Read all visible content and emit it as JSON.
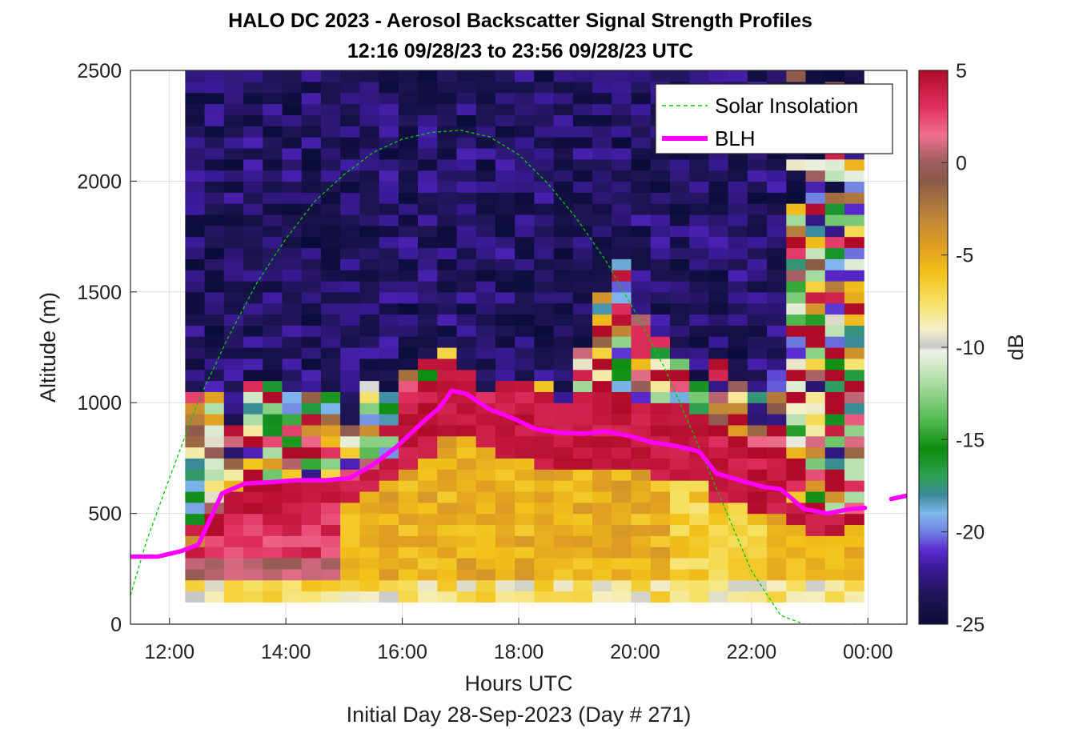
{
  "chart_data": {
    "type": "heatmap",
    "title": "HALO DC 2023 - Aerosol Backscatter Signal Strength Profiles",
    "subtitle": "12:16 09/28/23 to 23:56 09/28/23  UTC",
    "xlabel": "Hours UTC",
    "ylabel": "Altitude (m)",
    "footer": "Initial Day 28-Sep-2023 (Day # 271)",
    "xlim": [
      11.33,
      24.67
    ],
    "ylim": [
      0,
      2500
    ],
    "x_ticks": [
      12,
      14,
      16,
      18,
      20,
      22,
      24
    ],
    "x_tick_labels": [
      "12:00",
      "14:00",
      "16:00",
      "18:00",
      "20:00",
      "22:00",
      "00:00"
    ],
    "y_ticks": [
      0,
      500,
      1000,
      1500,
      2000,
      2500
    ],
    "y_tick_labels": [
      "0",
      "500",
      "1000",
      "1500",
      "2000",
      "2500"
    ],
    "grid": true,
    "legend_position": "top-right",
    "colorbar": {
      "label": "dB",
      "range": [
        -25,
        5
      ],
      "ticks": [
        5,
        0,
        -5,
        -10,
        -15,
        -20,
        -25
      ],
      "tick_labels": [
        "5",
        "0",
        "-5",
        "-10",
        "-15",
        "-20",
        "-25"
      ],
      "stops": [
        [
          -25,
          "#0b0c3a"
        ],
        [
          -23.5,
          "#1f1555"
        ],
        [
          -22,
          "#3a1a96"
        ],
        [
          -21,
          "#5a2ad0"
        ],
        [
          -20,
          "#7080e0"
        ],
        [
          -19,
          "#80b8ee"
        ],
        [
          -18,
          "#3a8a9a"
        ],
        [
          -17,
          "#2ea054"
        ],
        [
          -15.5,
          "#0c8c10"
        ],
        [
          -14,
          "#4fb84f"
        ],
        [
          -12,
          "#a8dca0"
        ],
        [
          -10.2,
          "#f2f2e6"
        ],
        [
          -10,
          "#c8c8c8"
        ],
        [
          -9,
          "#f5f0c8"
        ],
        [
          -7.5,
          "#f6e060"
        ],
        [
          -6,
          "#f2c21a"
        ],
        [
          -4.5,
          "#e09e22"
        ],
        [
          -3,
          "#c08638"
        ],
        [
          -1,
          "#8a5a48"
        ],
        [
          0,
          "#9c5e5e"
        ],
        [
          1.5,
          "#f07090"
        ],
        [
          3,
          "#e03060"
        ],
        [
          5,
          "#b00a28"
        ]
      ]
    },
    "heatmap": {
      "x_start": 12.27,
      "x_end": 23.93,
      "y_start": 100,
      "y_end": 2500,
      "n_x": 35,
      "n_y": 48,
      "units": "dB"
    },
    "series": [
      {
        "name": "Solar Insolation",
        "style": "dashed",
        "color": "#00cc00",
        "x": [
          11.33,
          11.6,
          12.0,
          12.5,
          13.0,
          13.5,
          14.0,
          14.5,
          15.0,
          15.5,
          16.0,
          16.5,
          17.0,
          17.5,
          18.0,
          18.5,
          19.0,
          19.5,
          20.0,
          20.5,
          21.0,
          21.5,
          22.0,
          22.5,
          22.9,
          24.67
        ],
        "y": [
          130,
          370,
          660,
          1010,
          1290,
          1540,
          1740,
          1910,
          2030,
          2130,
          2190,
          2220,
          2230,
          2200,
          2120,
          1990,
          1830,
          1640,
          1410,
          1160,
          860,
          550,
          240,
          40,
          0,
          0
        ]
      },
      {
        "name": "BLH",
        "style": "solid",
        "color": "#ff00ff",
        "x": [
          11.33,
          11.8,
          12.2,
          12.5,
          12.9,
          13.3,
          13.7,
          14.2,
          14.7,
          15.1,
          15.5,
          15.9,
          16.3,
          16.65,
          16.85,
          17.1,
          17.5,
          17.9,
          18.3,
          18.7,
          19.1,
          19.5,
          19.9,
          20.3,
          20.7,
          21.1,
          21.4,
          21.8,
          22.2,
          22.5,
          22.9,
          23.3,
          23.7,
          23.95
        ],
        "y": [
          305,
          305,
          330,
          360,
          590,
          635,
          640,
          650,
          650,
          660,
          720,
          800,
          900,
          980,
          1055,
          1040,
          970,
          930,
          880,
          865,
          860,
          870,
          850,
          820,
          805,
          780,
          680,
          650,
          620,
          610,
          520,
          500,
          520,
          525
        ]
      },
      {
        "name": "BLH-tail",
        "style": "solid",
        "color": "#ff00ff",
        "x": [
          24.4,
          24.67
        ],
        "y": [
          565,
          580
        ]
      }
    ]
  }
}
